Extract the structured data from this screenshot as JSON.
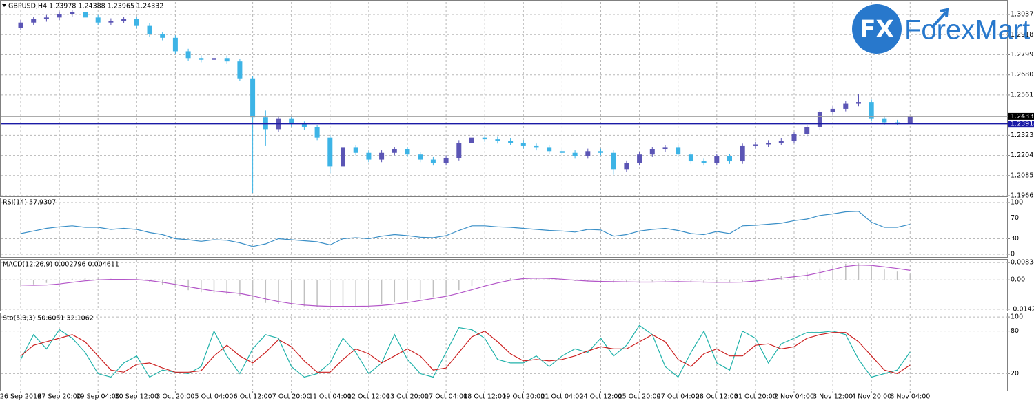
{
  "chart_data": [
    {
      "type": "candlestick",
      "title": "GBPUSD,H4  1.23978 1.24388 1.23965 1.24332",
      "categories": [
        "26 Sep 2016",
        null,
        null,
        "27 Sep 20:00",
        null,
        null,
        "29 Sep 04:00",
        null,
        null,
        "30 Sep 12:00",
        null,
        null,
        "3 Oct 20:00",
        null,
        null,
        "5 Oct 04:00",
        null,
        null,
        "6 Oct 12:00",
        null,
        null,
        "7 Oct 20:00",
        null,
        null,
        "11 Oct 04:00",
        null,
        null,
        "12 Oct 12:00",
        null,
        null,
        "13 Oct 20:00",
        null,
        null,
        "17 Oct 04:00",
        null,
        null,
        "18 Oct 12:00",
        null,
        null,
        "19 Oct 20:00",
        null,
        null,
        "21 Oct 04:00",
        null,
        null,
        "24 Oct 12:00",
        null,
        null,
        "25 Oct 20:00",
        null,
        null,
        "27 Oct 04:00",
        null,
        null,
        "28 Oct 12:00",
        null,
        null,
        "31 Oct 20:00",
        null,
        null,
        "2 Nov 04:00",
        null,
        null,
        "3 Nov 12:00",
        null,
        null,
        "4 Nov 20:00",
        null,
        null,
        "8 Nov 04:00"
      ],
      "open": [
        1.296,
        1.299,
        1.301,
        1.302,
        1.304,
        1.305,
        1.302,
        1.299,
        1.3,
        1.301,
        1.297,
        1.292,
        1.29,
        1.282,
        1.278,
        1.277,
        1.278,
        1.276,
        1.266,
        1.243,
        1.236,
        1.242,
        1.239,
        1.237,
        1.231,
        1.214,
        1.225,
        1.222,
        1.218,
        1.222,
        1.224,
        1.221,
        1.218,
        1.216,
        1.219,
        1.228,
        1.231,
        1.23,
        1.229,
        1.228,
        1.226,
        1.225,
        1.223,
        1.222,
        1.22,
        1.223,
        1.222,
        1.212,
        1.216,
        1.221,
        1.224,
        1.225,
        1.221,
        1.217,
        1.216,
        1.22,
        1.217,
        1.226,
        1.227,
        1.228,
        1.229,
        1.233,
        1.237,
        1.246,
        1.248,
        1.251,
        1.252,
        1.242,
        1.24,
        1.23978
      ],
      "high": [
        1.3005,
        1.3025,
        1.3035,
        1.3055,
        1.3065,
        1.3065,
        1.3035,
        1.3015,
        1.3025,
        1.3025,
        1.2985,
        1.2935,
        1.2915,
        1.2835,
        1.2795,
        1.2795,
        1.2795,
        1.2775,
        1.2675,
        1.247,
        1.2435,
        1.2435,
        1.2405,
        1.2385,
        1.2325,
        1.2265,
        1.2265,
        1.2235,
        1.2235,
        1.2255,
        1.2255,
        1.2225,
        1.2195,
        1.2205,
        1.2295,
        1.2325,
        1.2325,
        1.2315,
        1.2305,
        1.2295,
        1.2275,
        1.2265,
        1.2245,
        1.2235,
        1.2245,
        1.2245,
        1.2235,
        1.2175,
        1.2225,
        1.2255,
        1.2265,
        1.2265,
        1.2225,
        1.2185,
        1.2215,
        1.2215,
        1.2275,
        1.2285,
        1.2295,
        1.2305,
        1.2345,
        1.2385,
        1.2475,
        1.2495,
        1.2525,
        1.2565,
        1.2535,
        1.2435,
        1.2415,
        1.24388
      ],
      "low": [
        1.2945,
        1.2975,
        1.2995,
        1.3005,
        1.3025,
        1.3005,
        1.2975,
        1.2975,
        1.2985,
        1.2955,
        1.2905,
        1.2885,
        1.2805,
        1.2765,
        1.2755,
        1.2755,
        1.2745,
        1.2645,
        1.1983,
        1.226,
        1.2345,
        1.2375,
        1.2355,
        1.2295,
        1.21,
        1.2125,
        1.2205,
        1.2165,
        1.2165,
        1.2205,
        1.2195,
        1.2165,
        1.2145,
        1.2145,
        1.2175,
        1.2265,
        1.2285,
        1.2275,
        1.2265,
        1.2245,
        1.2235,
        1.2215,
        1.2205,
        1.2185,
        1.2185,
        1.2205,
        1.209,
        1.2105,
        1.2145,
        1.2195,
        1.2225,
        1.2195,
        1.2155,
        1.2145,
        1.2145,
        1.2155,
        1.2155,
        1.2245,
        1.2255,
        1.2265,
        1.2275,
        1.2315,
        1.2355,
        1.2445,
        1.2465,
        1.2495,
        1.2405,
        1.2385,
        1.2383,
        1.23965
      ],
      "close": [
        1.299,
        1.301,
        1.302,
        1.304,
        1.305,
        1.302,
        1.299,
        1.3,
        1.301,
        1.297,
        1.292,
        1.29,
        1.282,
        1.278,
        1.277,
        1.278,
        1.276,
        1.266,
        1.243,
        1.236,
        1.242,
        1.239,
        1.237,
        1.231,
        1.214,
        1.225,
        1.222,
        1.218,
        1.222,
        1.224,
        1.221,
        1.218,
        1.216,
        1.219,
        1.228,
        1.231,
        1.23,
        1.229,
        1.228,
        1.226,
        1.225,
        1.223,
        1.222,
        1.22,
        1.223,
        1.222,
        1.212,
        1.216,
        1.221,
        1.224,
        1.225,
        1.221,
        1.217,
        1.216,
        1.22,
        1.217,
        1.226,
        1.227,
        1.228,
        1.229,
        1.233,
        1.237,
        1.246,
        1.248,
        1.251,
        1.252,
        1.242,
        1.24,
        1.23978,
        1.24332
      ],
      "up_color": "#5b55b5",
      "down_color": "#3db4e6",
      "ylim": [
        1.19665,
        1.3111
      ],
      "yticks": [
        1.30375,
        1.29185,
        1.27995,
        1.26805,
        1.25615,
        1.23235,
        1.22045,
        1.20855,
        1.19665
      ],
      "grid": true,
      "hline": {
        "value": 1.23914,
        "color": "#1a1aa6"
      },
      "last_price": 1.24332
    },
    {
      "type": "line",
      "title": "RSI(14) 57.9307",
      "series": [
        {
          "color": "#3a8fc7",
          "values": [
            40,
            45,
            50,
            53,
            55,
            52,
            52,
            48,
            50,
            48,
            42,
            38,
            30,
            28,
            25,
            28,
            27,
            22,
            15,
            20,
            30,
            28,
            26,
            24,
            18,
            30,
            32,
            30,
            35,
            38,
            36,
            33,
            32,
            36,
            46,
            55,
            55,
            53,
            52,
            50,
            48,
            46,
            45,
            43,
            48,
            47,
            35,
            38,
            45,
            48,
            50,
            46,
            40,
            38,
            44,
            40,
            55,
            56,
            58,
            60,
            65,
            68,
            75,
            78,
            82,
            83,
            62,
            52,
            52,
            57.9307
          ]
        }
      ],
      "ylim": [
        -4,
        108
      ],
      "yticks": [
        100,
        70,
        30,
        0
      ],
      "grid": true
    },
    {
      "type": "macd",
      "title": "MACD(12,26,9) 0.002796 0.004611",
      "series": [
        {
          "style": "histogram",
          "color": "#c0c0c0",
          "values": [
            -0.0028,
            -0.0022,
            -0.0015,
            -0.0005,
            0.0005,
            0.0008,
            0.0006,
            0.0005,
            0.0004,
            -0.0002,
            -0.0012,
            -0.0025,
            -0.0038,
            -0.005,
            -0.006,
            -0.0066,
            -0.007,
            -0.0078,
            -0.0098,
            -0.0112,
            -0.0118,
            -0.0124,
            -0.0128,
            -0.0132,
            -0.0138,
            -0.013,
            -0.0128,
            -0.0126,
            -0.0118,
            -0.0108,
            -0.01,
            -0.0092,
            -0.0084,
            -0.007,
            -0.005,
            -0.003,
            -0.0012,
            0.0,
            0.0008,
            0.001,
            0.0009,
            0.0005,
            0.0,
            -0.0006,
            -0.0008,
            -0.001,
            -0.0014,
            -0.0013,
            -0.0011,
            -0.0008,
            -0.0007,
            -0.0009,
            -0.0013,
            -0.0015,
            -0.0013,
            -0.0014,
            -0.0008,
            0.0,
            0.001,
            0.002,
            0.0028,
            0.0038,
            0.0055,
            0.0068,
            0.0078,
            0.008,
            0.0065,
            0.005,
            0.004,
            0.002796
          ]
        },
        {
          "style": "line",
          "color": "#b355c8",
          "values": [
            -0.0025,
            -0.0026,
            -0.0025,
            -0.002,
            -0.0012,
            -0.0005,
            0.0,
            0.0002,
            0.0002,
            0.0001,
            -0.0004,
            -0.0012,
            -0.0022,
            -0.0033,
            -0.0044,
            -0.0054,
            -0.006,
            -0.0066,
            -0.0078,
            -0.0092,
            -0.0105,
            -0.0115,
            -0.0122,
            -0.0126,
            -0.0128,
            -0.0128,
            -0.0128,
            -0.0127,
            -0.0124,
            -0.0118,
            -0.011,
            -0.01,
            -0.009,
            -0.008,
            -0.0065,
            -0.0048,
            -0.003,
            -0.0015,
            -0.0002,
            0.0006,
            0.0008,
            0.0007,
            0.0003,
            -0.0002,
            -0.0006,
            -0.0008,
            -0.0009,
            -0.001,
            -0.0011,
            -0.0011,
            -0.001,
            -0.0009,
            -0.001,
            -0.0011,
            -0.0012,
            -0.0012,
            -0.0011,
            -0.0006,
            0.0,
            0.0008,
            0.0015,
            0.0022,
            0.0035,
            0.005,
            0.0065,
            0.0072,
            0.007,
            0.0063,
            0.0055,
            0.004611
          ]
        }
      ],
      "ylim": [
        -0.0146,
        0.0094
      ],
      "yticks": [
        0.008343,
        {
          "value": 0,
          "label": "0.00"
        },
        -0.014226
      ],
      "grid": true
    },
    {
      "type": "line",
      "title": "Sto(5,3,3) 50.6051 32.1062",
      "series": [
        {
          "color": "#20b2aa",
          "values": [
            40,
            75,
            55,
            82,
            70,
            50,
            20,
            15,
            35,
            45,
            15,
            25,
            22,
            20,
            30,
            80,
            45,
            20,
            55,
            75,
            70,
            30,
            15,
            20,
            35,
            70,
            50,
            20,
            35,
            75,
            40,
            20,
            15,
            50,
            85,
            82,
            70,
            40,
            35,
            35,
            45,
            30,
            45,
            55,
            50,
            70,
            45,
            60,
            88,
            75,
            30,
            15,
            50,
            80,
            35,
            25,
            80,
            70,
            35,
            62,
            70,
            78,
            78,
            80,
            75,
            40,
            15,
            20,
            25,
            50.6051
          ]
        },
        {
          "color": "#cc2020",
          "values": [
            45,
            60,
            65,
            70,
            75,
            65,
            45,
            25,
            22,
            33,
            35,
            28,
            22,
            22,
            24,
            45,
            60,
            45,
            35,
            50,
            68,
            58,
            38,
            22,
            22,
            40,
            55,
            48,
            35,
            45,
            55,
            45,
            25,
            28,
            50,
            72,
            80,
            65,
            48,
            38,
            40,
            38,
            40,
            45,
            52,
            58,
            55,
            55,
            65,
            75,
            65,
            40,
            30,
            48,
            55,
            45,
            45,
            60,
            62,
            55,
            58,
            70,
            75,
            78,
            78,
            65,
            45,
            25,
            20,
            32.1062
          ]
        }
      ],
      "ylim": [
        -3,
        104
      ],
      "yticks": [
        100,
        80,
        20
      ],
      "grid": true
    }
  ],
  "logo": {
    "badge": "FX",
    "text": "ForexMart"
  }
}
